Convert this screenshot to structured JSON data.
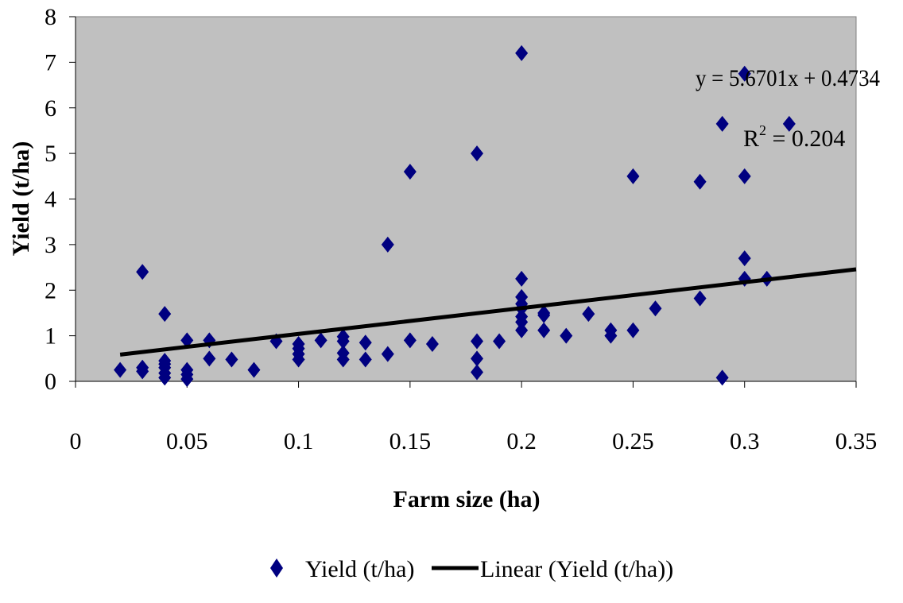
{
  "chart_data": {
    "type": "scatter",
    "title": "",
    "xlabel": "Farm size (ha)",
    "ylabel": "Yield (t/ha)",
    "xlim": [
      0,
      0.35
    ],
    "ylim": [
      0,
      8
    ],
    "x_ticks": [
      "0",
      "0.05",
      "0.1",
      "0.15",
      "0.2",
      "0.25",
      "0.3",
      "0.35"
    ],
    "y_ticks": [
      "0",
      "1",
      "2",
      "3",
      "4",
      "5",
      "6",
      "7",
      "8"
    ],
    "grid": false,
    "plot_background": "#c0c0c0",
    "legend_position": "bottom",
    "series": [
      {
        "name": "Yield (t/ha)",
        "marker": "diamond",
        "color": "#000080",
        "points": [
          [
            0.02,
            0.25
          ],
          [
            0.03,
            0.3
          ],
          [
            0.03,
            0.22
          ],
          [
            0.03,
            2.4
          ],
          [
            0.04,
            1.48
          ],
          [
            0.04,
            0.45
          ],
          [
            0.04,
            0.38
          ],
          [
            0.04,
            0.3
          ],
          [
            0.04,
            0.18
          ],
          [
            0.04,
            0.08
          ],
          [
            0.05,
            0.9
          ],
          [
            0.05,
            0.25
          ],
          [
            0.05,
            0.15
          ],
          [
            0.05,
            0.05
          ],
          [
            0.06,
            0.9
          ],
          [
            0.06,
            0.5
          ],
          [
            0.07,
            0.48
          ],
          [
            0.08,
            0.25
          ],
          [
            0.09,
            0.88
          ],
          [
            0.1,
            0.82
          ],
          [
            0.1,
            0.72
          ],
          [
            0.1,
            0.6
          ],
          [
            0.1,
            0.48
          ],
          [
            0.11,
            0.9
          ],
          [
            0.12,
            0.98
          ],
          [
            0.12,
            0.88
          ],
          [
            0.12,
            0.62
          ],
          [
            0.12,
            0.48
          ],
          [
            0.13,
            0.85
          ],
          [
            0.13,
            0.48
          ],
          [
            0.14,
            3.0
          ],
          [
            0.14,
            0.6
          ],
          [
            0.15,
            4.6
          ],
          [
            0.15,
            0.9
          ],
          [
            0.16,
            0.82
          ],
          [
            0.18,
            5.0
          ],
          [
            0.18,
            0.88
          ],
          [
            0.18,
            0.5
          ],
          [
            0.18,
            0.2
          ],
          [
            0.19,
            0.88
          ],
          [
            0.2,
            7.2
          ],
          [
            0.2,
            2.25
          ],
          [
            0.2,
            1.85
          ],
          [
            0.2,
            1.7
          ],
          [
            0.2,
            1.6
          ],
          [
            0.2,
            1.42
          ],
          [
            0.2,
            1.3
          ],
          [
            0.2,
            1.12
          ],
          [
            0.21,
            1.5
          ],
          [
            0.21,
            1.45
          ],
          [
            0.21,
            1.12
          ],
          [
            0.22,
            1.0
          ],
          [
            0.23,
            1.48
          ],
          [
            0.24,
            1.12
          ],
          [
            0.24,
            1.0
          ],
          [
            0.25,
            4.5
          ],
          [
            0.25,
            1.12
          ],
          [
            0.26,
            1.6
          ],
          [
            0.28,
            4.38
          ],
          [
            0.28,
            1.82
          ],
          [
            0.29,
            5.65
          ],
          [
            0.29,
            0.08
          ],
          [
            0.3,
            6.75
          ],
          [
            0.3,
            4.5
          ],
          [
            0.3,
            2.7
          ],
          [
            0.3,
            2.25
          ],
          [
            0.31,
            2.25
          ],
          [
            0.32,
            5.65
          ]
        ]
      },
      {
        "name": "Linear (Yield (t/ha))",
        "type": "line",
        "color": "#000000",
        "slope": 5.6701,
        "intercept": 0.4734,
        "x_range": [
          0.02,
          0.35
        ]
      }
    ],
    "annotations": {
      "equation": "y = 5.6701x + 0.4734",
      "r2_prefix": "R",
      "r2_sup": "2",
      "r2_value": " = 0.204"
    }
  }
}
